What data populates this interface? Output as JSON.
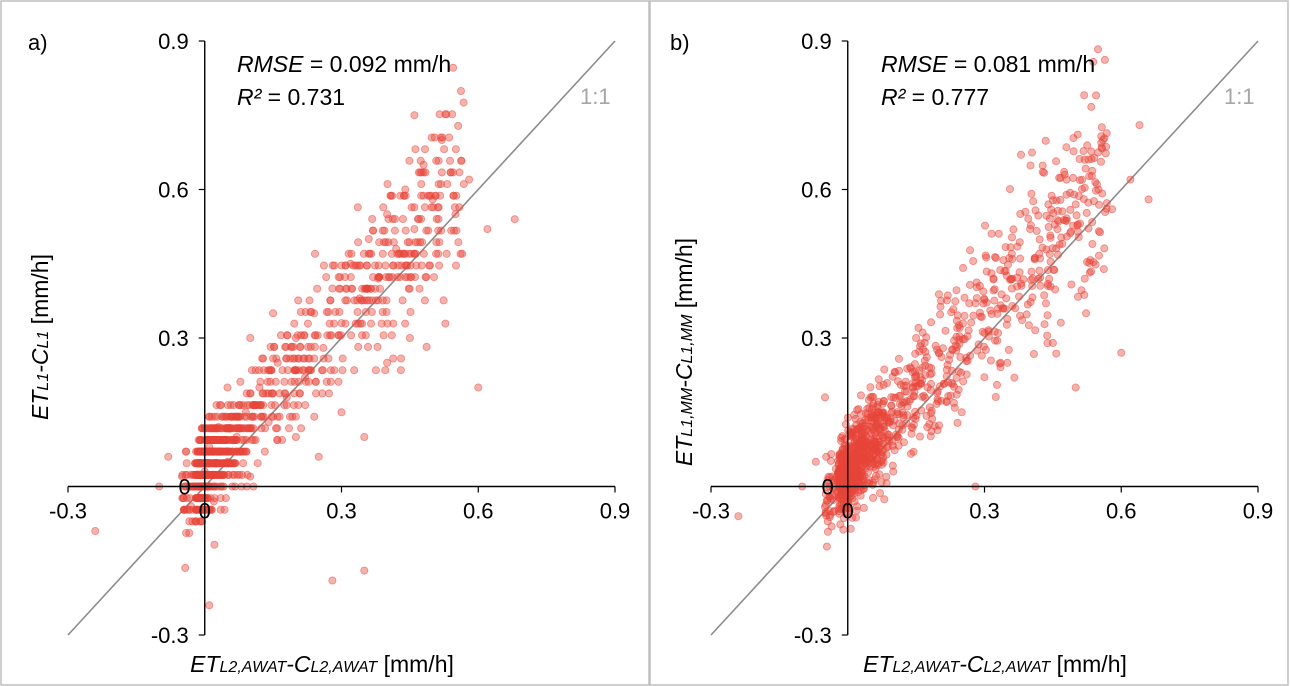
{
  "chart_data": [
    {
      "type": "scatter",
      "panel_label": "a)",
      "xlim": [
        -0.3,
        0.9
      ],
      "ylim": [
        -0.3,
        0.9
      ],
      "x_ticks": [
        "-0.3",
        "0",
        "0.3",
        "0.6",
        "0.9"
      ],
      "y_ticks": [
        "-0.3",
        "0",
        "0.3",
        "0.6",
        "0.9"
      ],
      "stats": {
        "rmse_label": "RMSE",
        "rmse_value": " = 0.092 mm/h",
        "r2_label": "R²",
        "r2_value": " = 0.731"
      },
      "reference_line_label": "1:1",
      "xlabel": {
        "main": "ET",
        "sub1": "L2,AWAT",
        "dash": "-C",
        "sub2": "L2,AWAT",
        "unit": "  [mm/h]"
      },
      "ylabel": {
        "main": "ET",
        "sub1": "L1",
        "dash": "-C",
        "sub2": "L1",
        "unit": "  [mm/h]"
      },
      "grid": false,
      "marker_color": "#e8463a",
      "sample_points": [
        [
          -0.24,
          -0.09
        ],
        [
          -0.1,
          0.0
        ],
        [
          -0.08,
          0.06
        ],
        [
          -0.05,
          0.02
        ],
        [
          -0.03,
          -0.04
        ],
        [
          0.0,
          0.03
        ],
        [
          0.01,
          0.08
        ],
        [
          0.02,
          -0.03
        ],
        [
          0.03,
          0.12
        ],
        [
          0.05,
          0.05
        ],
        [
          0.07,
          0.1
        ],
        [
          0.09,
          0.15
        ],
        [
          0.1,
          0.02
        ],
        [
          0.12,
          0.2
        ],
        [
          0.14,
          0.13
        ],
        [
          0.16,
          0.25
        ],
        [
          0.18,
          0.18
        ],
        [
          0.2,
          0.3
        ],
        [
          0.22,
          0.22
        ],
        [
          0.24,
          0.35
        ],
        [
          0.26,
          0.28
        ],
        [
          0.28,
          0.4
        ],
        [
          0.3,
          0.33
        ],
        [
          0.32,
          0.45
        ],
        [
          0.34,
          0.38
        ],
        [
          0.36,
          0.5
        ],
        [
          0.38,
          0.42
        ],
        [
          0.4,
          0.55
        ],
        [
          0.42,
          0.48
        ],
        [
          0.44,
          0.6
        ],
        [
          0.46,
          0.52
        ],
        [
          0.48,
          0.65
        ],
        [
          0.5,
          0.58
        ],
        [
          0.52,
          0.7
        ],
        [
          0.55,
          0.55
        ],
        [
          0.58,
          0.62
        ],
        [
          0.62,
          0.52
        ],
        [
          0.68,
          0.54
        ],
        [
          0.46,
          0.75
        ],
        [
          0.6,
          0.2
        ],
        [
          0.4,
          0.25
        ],
        [
          0.35,
          0.1
        ],
        [
          0.28,
          -0.19
        ],
        [
          0.35,
          -0.17
        ],
        [
          0.01,
          -0.24
        ],
        [
          0.25,
          0.06
        ],
        [
          0.45,
          0.3
        ],
        [
          0.15,
          0.35
        ],
        [
          0.1,
          0.3
        ],
        [
          0.05,
          0.2
        ],
        [
          0.2,
          0.1
        ],
        [
          0.3,
          0.15
        ]
      ]
    },
    {
      "type": "scatter",
      "panel_label": "b)",
      "xlim": [
        -0.3,
        0.9
      ],
      "ylim": [
        -0.3,
        0.9
      ],
      "x_ticks": [
        "-0.3",
        "0",
        "0.3",
        "0.6",
        "0.9"
      ],
      "y_ticks": [
        "-0.3",
        "0",
        "0.3",
        "0.6",
        "0.9"
      ],
      "stats": {
        "rmse_label": "RMSE",
        "rmse_value": " = 0.081 mm/h",
        "r2_label": "R²",
        "r2_value": " = 0.777"
      },
      "reference_line_label": "1:1",
      "xlabel": {
        "main": "ET",
        "sub1": "L2,AWAT",
        "dash": "-C",
        "sub2": "L2,AWAT",
        "unit": "  [mm/h]"
      },
      "ylabel": {
        "main": "ET",
        "sub1": "L1,MM",
        "dash": "-C",
        "sub2": "L1,MM",
        "unit": "  [mm/h]"
      },
      "grid": false,
      "marker_color": "#e8463a",
      "sample_points": [
        [
          -0.24,
          -0.06
        ],
        [
          -0.1,
          0.0
        ],
        [
          -0.07,
          0.05
        ],
        [
          -0.04,
          -0.02
        ],
        [
          -0.02,
          0.03
        ],
        [
          0.0,
          0.0
        ],
        [
          0.01,
          0.06
        ],
        [
          0.02,
          -0.04
        ],
        [
          0.03,
          0.1
        ],
        [
          0.05,
          0.04
        ],
        [
          0.07,
          0.09
        ],
        [
          0.09,
          0.13
        ],
        [
          0.1,
          0.03
        ],
        [
          0.12,
          0.17
        ],
        [
          0.14,
          0.12
        ],
        [
          0.16,
          0.22
        ],
        [
          0.18,
          0.16
        ],
        [
          0.2,
          0.27
        ],
        [
          0.22,
          0.21
        ],
        [
          0.24,
          0.32
        ],
        [
          0.26,
          0.26
        ],
        [
          0.28,
          0.37
        ],
        [
          0.3,
          0.31
        ],
        [
          0.32,
          0.42
        ],
        [
          0.34,
          0.36
        ],
        [
          0.36,
          0.47
        ],
        [
          0.38,
          0.41
        ],
        [
          0.4,
          0.52
        ],
        [
          0.42,
          0.47
        ],
        [
          0.44,
          0.57
        ],
        [
          0.46,
          0.52
        ],
        [
          0.48,
          0.62
        ],
        [
          0.5,
          0.57
        ],
        [
          0.52,
          0.66
        ],
        [
          0.55,
          0.6
        ],
        [
          0.58,
          0.56
        ],
        [
          0.62,
          0.62
        ],
        [
          0.66,
          0.58
        ],
        [
          0.64,
          0.73
        ],
        [
          0.56,
          0.7
        ],
        [
          0.38,
          0.67
        ],
        [
          0.5,
          0.2
        ],
        [
          0.6,
          0.27
        ],
        [
          0.45,
          0.29
        ],
        [
          0.28,
          0.0
        ],
        [
          0.05,
          0.12
        ],
        [
          -0.05,
          0.18
        ],
        [
          0.15,
          0.3
        ],
        [
          0.25,
          0.15
        ],
        [
          0.35,
          0.25
        ]
      ]
    }
  ]
}
